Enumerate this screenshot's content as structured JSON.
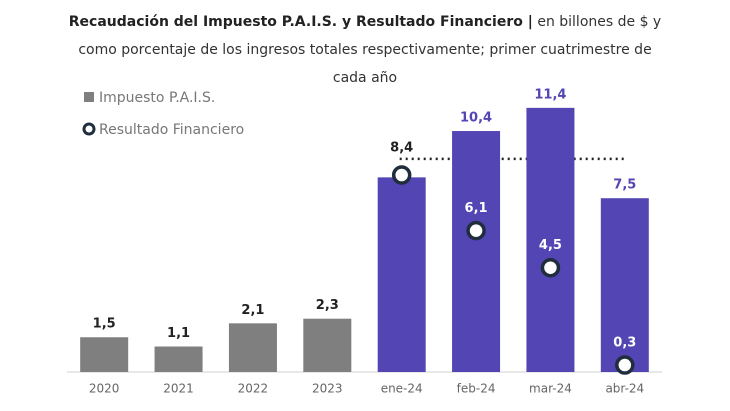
{
  "chart_data": {
    "type": "bar",
    "title": "Recaudación del Impuesto P.A.I.S. y Resultado Financiero |",
    "subtitle": "en billones de $ y como porcentaje de los ingresos totales respectivamente; primer cuatrimestre de cada año",
    "categories": [
      "2020",
      "2021",
      "2022",
      "2023",
      "ene-24",
      "feb-24",
      "mar-24",
      "abr-24"
    ],
    "ylim": [
      0,
      12.3
    ],
    "series": [
      {
        "name": "Impuesto P.A.I.S.",
        "type": "bar",
        "color": "#7f7f7f",
        "colors": [
          "#7f7f7f",
          "#7f7f7f",
          "#7f7f7f",
          "#7f7f7f",
          "#5345b4",
          "#5345b4",
          "#5345b4",
          "#5345b4"
        ],
        "values": [
          1.5,
          1.1,
          2.1,
          2.3,
          8.4,
          10.4,
          11.4,
          7.5
        ],
        "value_labels": [
          "1,5",
          "1,1",
          "2,1",
          "2,3",
          "8,4",
          "10,4",
          "11,4",
          "7,5"
        ],
        "label_colors": [
          "#222222",
          "#222222",
          "#222222",
          "#222222",
          "#222222",
          "#5345b4",
          "#5345b4",
          "#5345b4"
        ]
      },
      {
        "name": "Resultado Financiero",
        "type": "scatter",
        "color": "#1f2d3d",
        "values": [
          null,
          null,
          null,
          null,
          8.5,
          6.1,
          4.5,
          0.3
        ],
        "value_labels": [
          null,
          null,
          null,
          null,
          null,
          "6,1",
          "4,5",
          "0,3"
        ]
      }
    ],
    "reference_line": {
      "value": 9.2,
      "from": "ene-24",
      "to": "abr-24"
    }
  }
}
